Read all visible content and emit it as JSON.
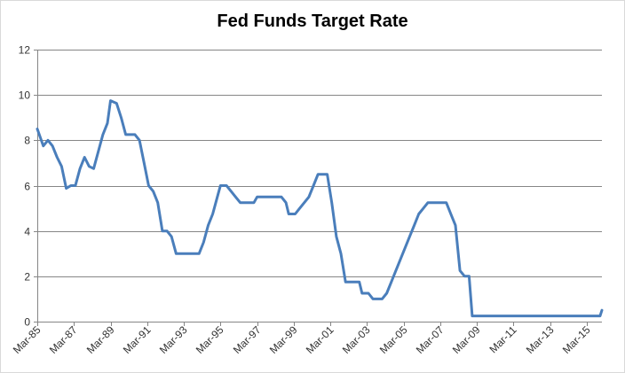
{
  "chart_data": {
    "type": "line",
    "title": "Fed Funds Target Rate",
    "xlabel": "",
    "ylabel": "",
    "ylim": [
      0,
      12
    ],
    "yticks": [
      0,
      2,
      4,
      6,
      8,
      10,
      12
    ],
    "xlim": [
      1985.17,
      2016.0
    ],
    "xticks": [
      {
        "label": "Mar-85",
        "x": 1985.17
      },
      {
        "label": "Mar-87",
        "x": 1987.17
      },
      {
        "label": "Mar-89",
        "x": 1989.17
      },
      {
        "label": "Mar-91",
        "x": 1991.17
      },
      {
        "label": "Mar-93",
        "x": 1993.17
      },
      {
        "label": "Mar-95",
        "x": 1995.17
      },
      {
        "label": "Mar-97",
        "x": 1997.17
      },
      {
        "label": "Mar-99",
        "x": 1999.17
      },
      {
        "label": "Mar-01",
        "x": 2001.17
      },
      {
        "label": "Mar-03",
        "x": 2003.17
      },
      {
        "label": "Mar-05",
        "x": 2005.17
      },
      {
        "label": "Mar-07",
        "x": 2007.17
      },
      {
        "label": "Mar-09",
        "x": 2009.17
      },
      {
        "label": "Mar-11",
        "x": 2011.17
      },
      {
        "label": "Mar-13",
        "x": 2013.17
      },
      {
        "label": "Mar-15",
        "x": 2015.17
      }
    ],
    "grid": true,
    "legend": "none",
    "line_color": "#4a7ebb",
    "series": [
      {
        "points": [
          [
            1985.17,
            8.5
          ],
          [
            1985.5,
            7.75
          ],
          [
            1985.75,
            8.0
          ],
          [
            1986.0,
            7.75
          ],
          [
            1986.25,
            7.25
          ],
          [
            1986.5,
            6.85
          ],
          [
            1986.75,
            5.88
          ],
          [
            1987.0,
            6.0
          ],
          [
            1987.25,
            6.0
          ],
          [
            1987.5,
            6.75
          ],
          [
            1987.75,
            7.25
          ],
          [
            1988.0,
            6.85
          ],
          [
            1988.25,
            6.75
          ],
          [
            1988.5,
            7.5
          ],
          [
            1988.75,
            8.25
          ],
          [
            1989.0,
            8.75
          ],
          [
            1989.17,
            9.75
          ],
          [
            1989.5,
            9.63
          ],
          [
            1989.75,
            9.0
          ],
          [
            1990.0,
            8.25
          ],
          [
            1990.5,
            8.25
          ],
          [
            1990.75,
            8.0
          ],
          [
            1991.0,
            7.0
          ],
          [
            1991.25,
            6.0
          ],
          [
            1991.5,
            5.75
          ],
          [
            1991.75,
            5.25
          ],
          [
            1992.0,
            4.0
          ],
          [
            1992.25,
            4.0
          ],
          [
            1992.5,
            3.75
          ],
          [
            1992.75,
            3.0
          ],
          [
            1993.0,
            3.0
          ],
          [
            1994.0,
            3.0
          ],
          [
            1994.25,
            3.5
          ],
          [
            1994.5,
            4.25
          ],
          [
            1994.75,
            4.75
          ],
          [
            1995.0,
            5.5
          ],
          [
            1995.17,
            6.0
          ],
          [
            1995.5,
            6.0
          ],
          [
            1995.75,
            5.75
          ],
          [
            1996.0,
            5.5
          ],
          [
            1996.25,
            5.25
          ],
          [
            1997.0,
            5.25
          ],
          [
            1997.17,
            5.5
          ],
          [
            1998.5,
            5.5
          ],
          [
            1998.75,
            5.25
          ],
          [
            1998.9,
            4.75
          ],
          [
            1999.25,
            4.75
          ],
          [
            1999.5,
            5.0
          ],
          [
            2000.0,
            5.5
          ],
          [
            2000.25,
            6.0
          ],
          [
            2000.5,
            6.5
          ],
          [
            2001.0,
            6.5
          ],
          [
            2001.25,
            5.25
          ],
          [
            2001.5,
            3.75
          ],
          [
            2001.75,
            3.0
          ],
          [
            2002.0,
            1.75
          ],
          [
            2002.5,
            1.75
          ],
          [
            2002.75,
            1.75
          ],
          [
            2002.9,
            1.25
          ],
          [
            2003.25,
            1.25
          ],
          [
            2003.5,
            1.0
          ],
          [
            2004.0,
            1.0
          ],
          [
            2004.25,
            1.25
          ],
          [
            2004.5,
            1.75
          ],
          [
            2004.75,
            2.25
          ],
          [
            2005.0,
            2.75
          ],
          [
            2005.25,
            3.25
          ],
          [
            2005.5,
            3.75
          ],
          [
            2005.75,
            4.25
          ],
          [
            2006.0,
            4.75
          ],
          [
            2006.25,
            5.0
          ],
          [
            2006.5,
            5.25
          ],
          [
            2007.5,
            5.25
          ],
          [
            2007.75,
            4.75
          ],
          [
            2008.0,
            4.25
          ],
          [
            2008.25,
            2.25
          ],
          [
            2008.5,
            2.0
          ],
          [
            2008.75,
            2.0
          ],
          [
            2008.92,
            0.25
          ],
          [
            2015.9,
            0.25
          ],
          [
            2016.0,
            0.5
          ]
        ]
      }
    ]
  }
}
